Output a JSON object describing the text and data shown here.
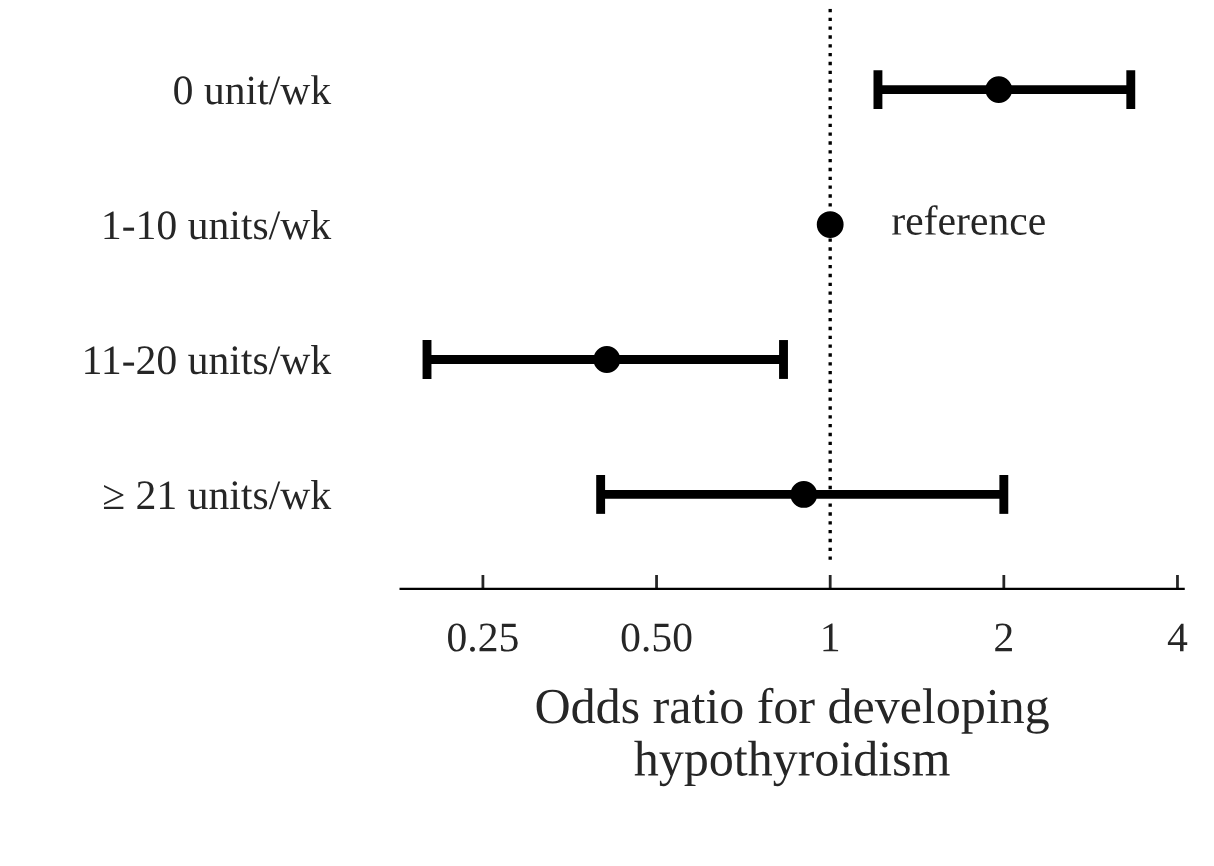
{
  "chart_data": {
    "type": "scatter",
    "orientation": "horizontal",
    "xlabel": "Odds ratio for developing hypothyroidism",
    "categories": [
      "0 unit/wk",
      "1-10 units/wk",
      "11-20 units/wk",
      "≥ 21 units/wk"
    ],
    "series": [
      {
        "color": "#000000",
        "values": [
          1.96,
          1,
          0.41,
          0.9
        ],
        "errors": [
          [
            1.21,
            3.32
          ],
          null,
          [
            0.2,
            0.83
          ],
          [
            0.4,
            2.0
          ]
        ]
      }
    ],
    "log": "x",
    "xlim": [
      0.18,
      4.1
    ],
    "xticks": [
      {
        "value": 0.25,
        "label": "0.25"
      },
      {
        "value": 0.5,
        "label": "0.50"
      },
      1,
      2,
      4
    ],
    "ref_lines": [
      {
        "axis": "x",
        "value": 1,
        "line_style": "dotted",
        "color": "#000000"
      }
    ],
    "annotations": [
      {
        "text": "reference",
        "x": 1,
        "y": "1-10 units/wk"
      }
    ],
    "marker": "circle",
    "grid": false,
    "legend": false
  }
}
